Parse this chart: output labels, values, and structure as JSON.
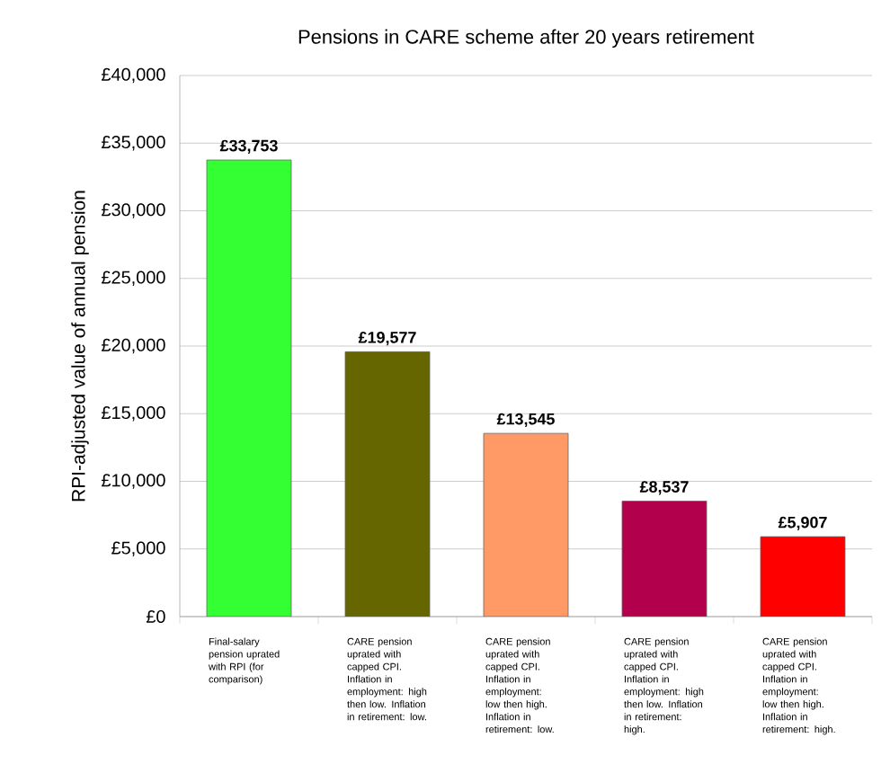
{
  "chart_data": {
    "type": "bar",
    "title": "Pensions in CARE scheme after 20 years retirement",
    "ylabel": "RPI-adjusted value of annual pension",
    "categories": [
      "Final-salary pension uprated with RPI (for comparison)",
      "CARE pension uprated with capped CPI. Inflation in employment: high then low. Inflation in retirement: low.",
      "CARE pension uprated with capped CPI. Inflation in employment: low then high. Inflation in retirement: low.",
      "CARE pension uprated with capped CPI. Inflation in employment: high then low. Inflation in retirement: high.",
      "CARE pension uprated with capped CPI. Inflation in employment: low then high. Inflation in retirement: high."
    ],
    "values": [
      33753,
      19577,
      13545,
      8537,
      5907
    ],
    "value_labels": [
      "£33,753",
      "£19,577",
      "£13,545",
      "£8,537",
      "£5,907"
    ],
    "colors": [
      "#33ff33",
      "#666600",
      "#ff9966",
      "#b3004c",
      "#ff0000"
    ],
    "ylim": [
      0,
      40000
    ],
    "yticks": [
      {
        "value": 0,
        "label": "£0"
      },
      {
        "value": 5000,
        "label": "£5,000"
      },
      {
        "value": 10000,
        "label": "£10,000"
      },
      {
        "value": 15000,
        "label": "£15,000"
      },
      {
        "value": 20000,
        "label": "£20,000"
      },
      {
        "value": 25000,
        "label": "£25,000"
      },
      {
        "value": 30000,
        "label": "£30,000"
      },
      {
        "value": 35000,
        "label": "£35,000"
      },
      {
        "value": 40000,
        "label": "£40,000"
      }
    ],
    "grid": "y"
  }
}
